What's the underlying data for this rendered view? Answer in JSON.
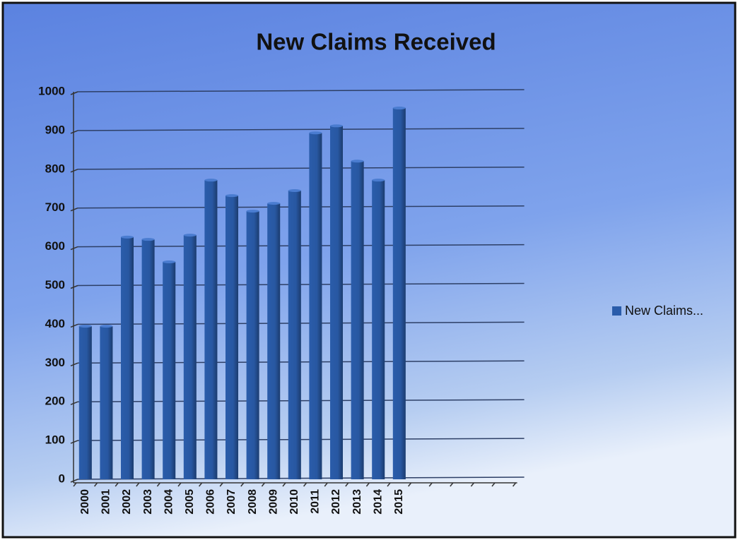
{
  "chart_data": {
    "type": "bar",
    "title": "New Claims Received",
    "categories": [
      "2000",
      "2001",
      "2002",
      "2003",
      "2004",
      "2005",
      "2006",
      "2007",
      "2008",
      "2009",
      "2010",
      "2011",
      "2012",
      "2013",
      "2014",
      "2015",
      null,
      null,
      null,
      null,
      null
    ],
    "series": [
      {
        "name": "New Claims...",
        "color": "#2a5caa",
        "values": [
          395,
          395,
          625,
          619,
          561,
          630,
          772,
          732,
          692,
          712,
          745,
          894,
          912,
          821,
          772,
          958,
          null,
          null,
          null,
          null,
          null
        ]
      }
    ],
    "ylim": [
      0,
      1000
    ],
    "yticks": [
      0,
      100,
      200,
      300,
      400,
      500,
      600,
      700,
      800,
      900,
      1000
    ],
    "grid": true,
    "legend": "right"
  }
}
